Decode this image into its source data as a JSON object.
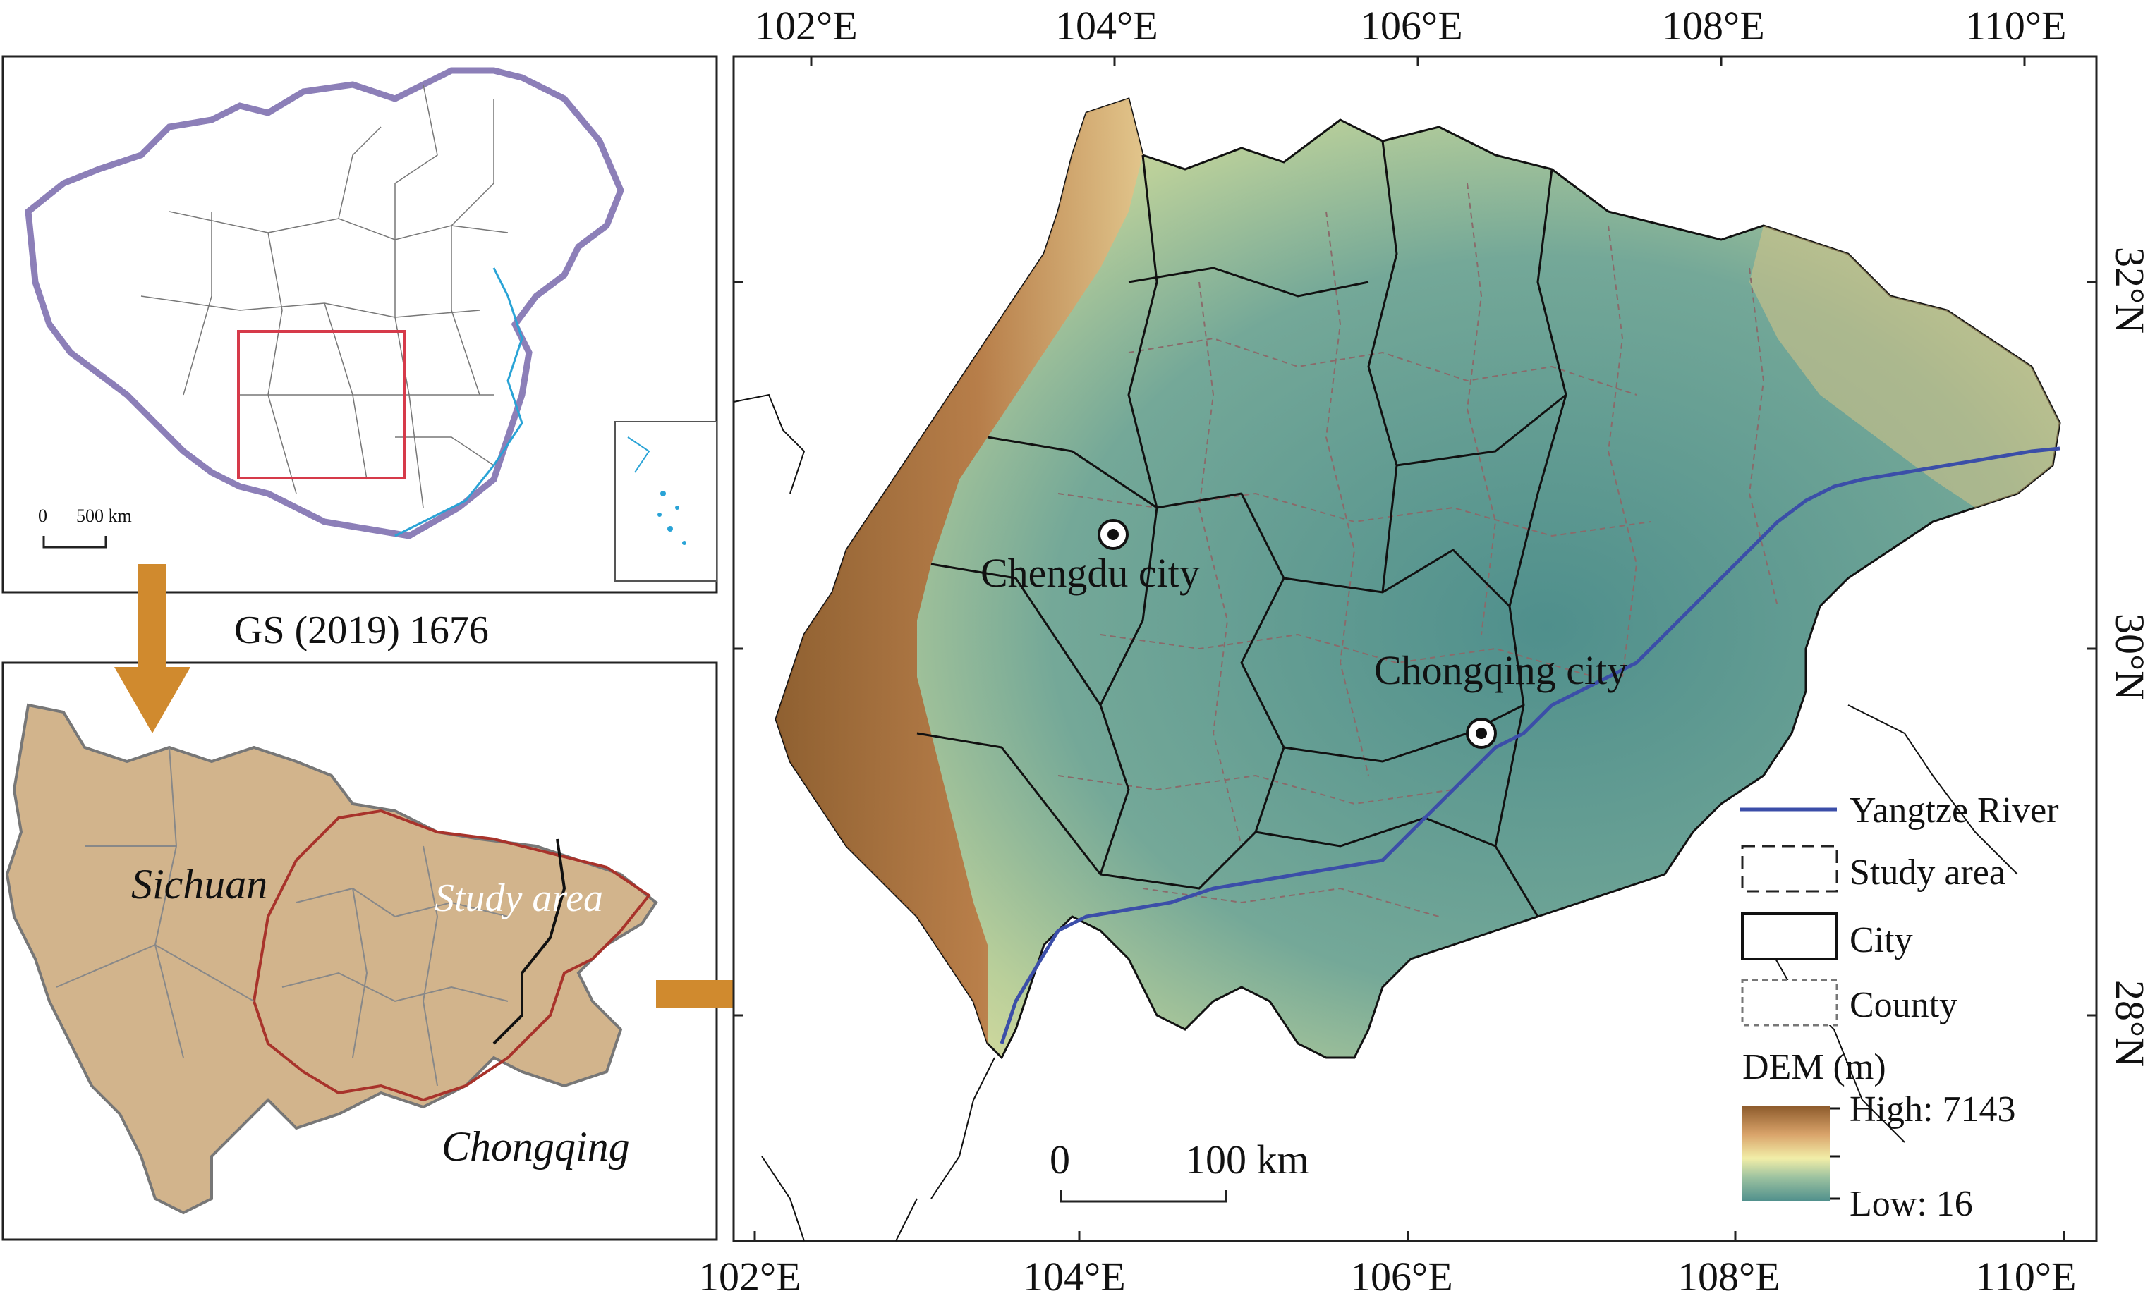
{
  "inset_china": {
    "scale_zero": "0",
    "scale_label": "500 km",
    "caption": "GS (2019) 1676",
    "colors": {
      "border": "#8c7fb8",
      "coast": "#29a3d6",
      "highlight": "#d63a4a"
    }
  },
  "inset_region": {
    "label_sichuan": "Sichuan",
    "label_study": "Study area",
    "label_chongqing": "Chongqing",
    "colors": {
      "fill": "#d2b48c",
      "study_border": "#a8332b"
    }
  },
  "main_map": {
    "top_ticks": [
      "102°E",
      "104°E",
      "106°E",
      "108°E",
      "110°E"
    ],
    "bottom_ticks": [
      "102°E",
      "104°E",
      "106°E",
      "108°E",
      "110°E"
    ],
    "right_ticks": [
      "32°N",
      "30°N",
      "28°N"
    ],
    "cities": {
      "chengdu": "Chengdu city",
      "chongqing": "Chongqing city"
    },
    "scale_zero": "0",
    "scale_label": "100 km"
  },
  "legend": {
    "river": "Yangtze River",
    "study_area": "Study area",
    "city": "City",
    "county": "County",
    "dem_title": "DEM (m)",
    "dem_high": "High: 7143",
    "dem_low": "Low: 16",
    "colors": {
      "river": "#3b4ea8",
      "dem_high": "#8c5a2b",
      "dem_mid": "#f2eea8",
      "dem_low": "#4f8f8c"
    }
  },
  "arrows": {
    "color": "#d08a2e"
  }
}
